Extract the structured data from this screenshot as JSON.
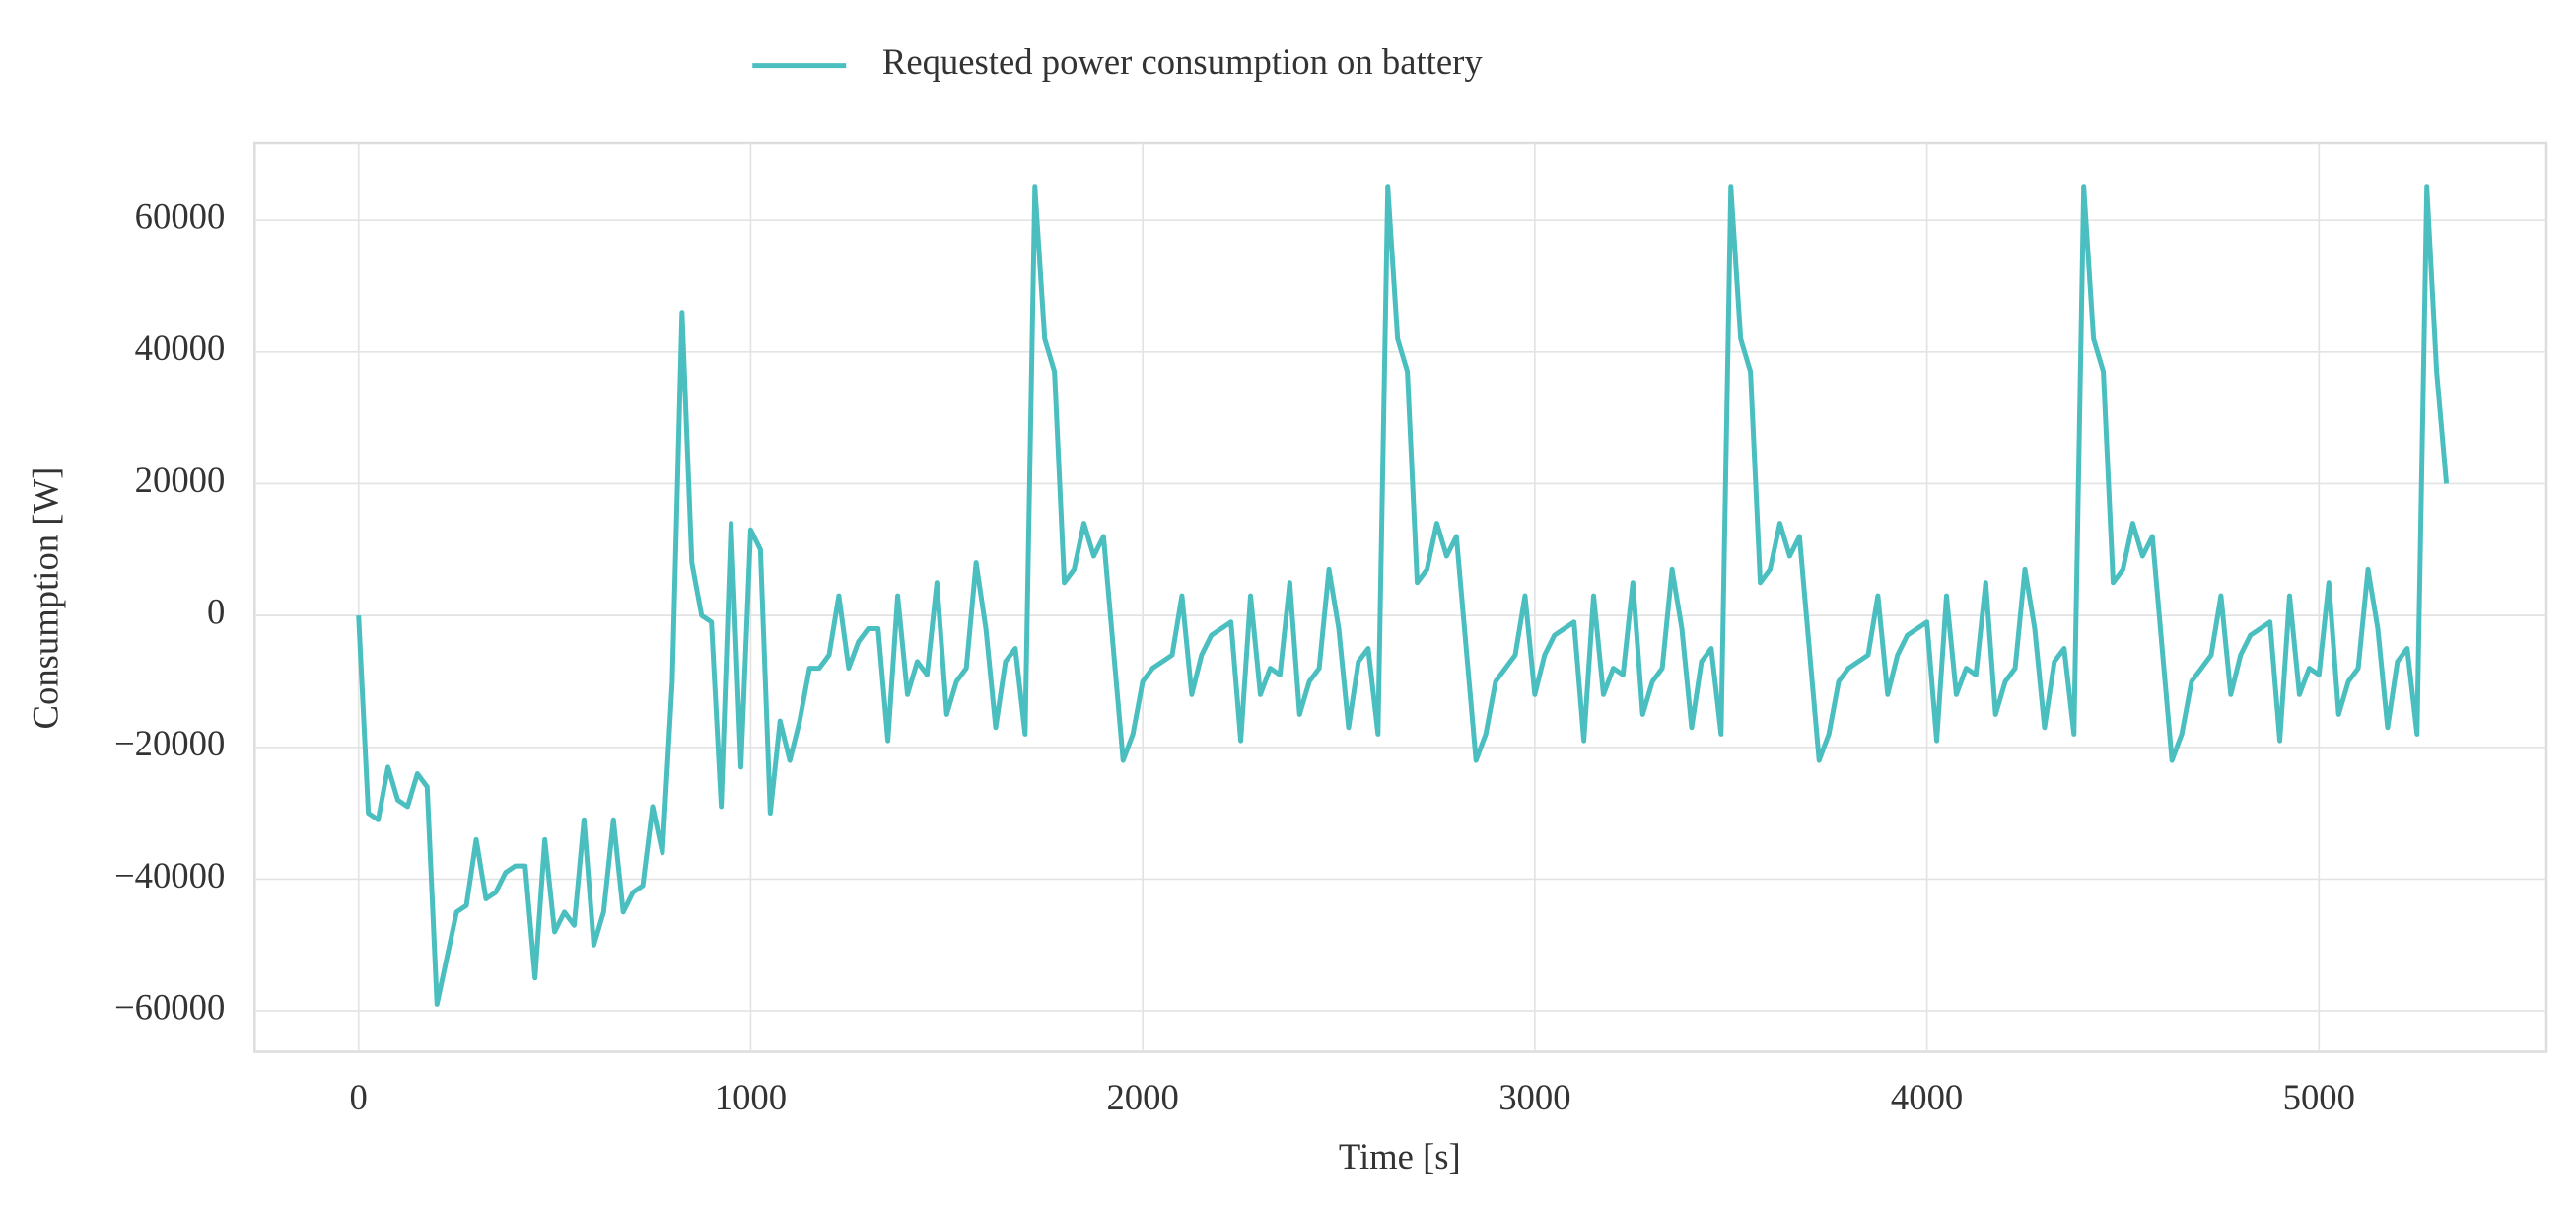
{
  "chart_data": {
    "type": "line",
    "xlabel": "Time [s]",
    "ylabel": "Consumption [W]",
    "xlim": [
      -265,
      5580
    ],
    "ylim": [
      -66200,
      71700
    ],
    "xticks": [
      0,
      1000,
      2000,
      3000,
      4000,
      5000
    ],
    "yticks": [
      {
        "value": -60000,
        "label": "−60000"
      },
      {
        "value": -40000,
        "label": "−40000"
      },
      {
        "value": -20000,
        "label": "−20000"
      },
      0,
      20000,
      40000,
      60000
    ],
    "grid": true,
    "legend": "top",
    "x": [
      0,
      25,
      50,
      75,
      100,
      125,
      150,
      175,
      200,
      225,
      250,
      275,
      300,
      325,
      350,
      375,
      400,
      425,
      450,
      475,
      500,
      525,
      550,
      575,
      600,
      625,
      650,
      675,
      700,
      725,
      750,
      775,
      800,
      825,
      850,
      875,
      900,
      925,
      950,
      975,
      1000,
      1025,
      1050,
      1075,
      1100,
      1125,
      1150,
      1175,
      1200,
      1225,
      1250,
      1275,
      1300,
      1325,
      1350,
      1375,
      1400,
      1425,
      1450,
      1475,
      1500,
      1525,
      1550,
      1575,
      1600,
      1625,
      1650,
      1675,
      1700,
      1725,
      1750,
      1775,
      1800,
      1825,
      1850,
      1875,
      1900,
      1925,
      1950,
      1975,
      2000,
      2025,
      2050,
      2075,
      2100,
      2125,
      2150,
      2175,
      2200,
      2225,
      2250,
      2275,
      2300,
      2325,
      2350,
      2375,
      2400,
      2425,
      2450,
      2475,
      2500,
      2525,
      2550,
      2575,
      2600,
      2625,
      2650,
      2675,
      2700,
      2725,
      2750,
      2775,
      2800,
      2825,
      2850,
      2875,
      2900,
      2925,
      2950,
      2975,
      3000,
      3025,
      3050,
      3075,
      3100,
      3125,
      3150,
      3175,
      3200,
      3225,
      3250,
      3275,
      3300,
      3325,
      3350,
      3375,
      3400,
      3425,
      3450,
      3475,
      3500,
      3525,
      3550,
      3575,
      3600,
      3625,
      3650,
      3675,
      3700,
      3725,
      3750,
      3775,
      3800,
      3825,
      3850,
      3875,
      3900,
      3925,
      3950,
      3975,
      4000,
      4025,
      4050,
      4075,
      4100,
      4125,
      4150,
      4175,
      4200,
      4225,
      4250,
      4275,
      4300,
      4325,
      4350,
      4375,
      4400,
      4425,
      4450,
      4475,
      4500,
      4525,
      4550,
      4575,
      4600,
      4625,
      4650,
      4675,
      4700,
      4725,
      4750,
      4775,
      4800,
      4825,
      4850,
      4875,
      4900,
      4925,
      4950,
      4975,
      5000,
      5025,
      5050,
      5075,
      5100,
      5125,
      5150,
      5175,
      5200,
      5225,
      5250,
      5275,
      5300,
      5325
    ],
    "series": [
      {
        "name": "Requested power consumption on battery",
        "color": "#4bbfc0",
        "values": [
          0,
          -30000,
          -31000,
          -23000,
          -28000,
          -29000,
          -24000,
          -26000,
          -59000,
          -52000,
          -45000,
          -44000,
          -34000,
          -43000,
          -42000,
          -39000,
          -38000,
          -38000,
          -55000,
          -34000,
          -48000,
          -45000,
          -47000,
          -31000,
          -50000,
          -45000,
          -31000,
          -45000,
          -42000,
          -41000,
          -29000,
          -36000,
          -10000,
          46000,
          8000,
          0,
          -1000,
          -29000,
          14000,
          -23000,
          13000,
          10000,
          -30000,
          -16000,
          -22000,
          -16000,
          -8000,
          -8000,
          -6000,
          3000,
          -8000,
          -4000,
          -2000,
          -2000,
          -19000,
          3000,
          -12000,
          -7000,
          -9000,
          5000,
          -15000,
          -10000,
          -8000,
          8000,
          -2000,
          -17000,
          -7000,
          -5000,
          -18000,
          65000,
          42000,
          37000,
          5000,
          7000,
          14000,
          9000,
          12000,
          -5000,
          -22000,
          -18000,
          -10000,
          -8000,
          -7000,
          -6000,
          3000,
          -12000,
          -6000,
          -3000,
          -2000,
          -1000,
          -19000,
          3000,
          -12000,
          -8000,
          -9000,
          5000,
          -15000,
          -10000,
          -8000,
          7000,
          -2000,
          -17000,
          -7000,
          -5000,
          -18000,
          65000,
          42000,
          37000,
          5000,
          7000,
          14000,
          9000,
          12000,
          -5000,
          -22000,
          -18000,
          -10000,
          -8000,
          -6000,
          3000,
          -12000,
          -6000,
          -3000,
          -2000,
          -1000,
          -19000,
          3000,
          -12000,
          -8000,
          -9000,
          5000,
          -15000,
          -10000,
          -8000,
          7000,
          -2000,
          -17000,
          -7000,
          -5000,
          -18000,
          65000,
          42000,
          37000,
          5000,
          7000,
          14000,
          9000,
          12000,
          -5000,
          -22000,
          -18000,
          -10000,
          -8000,
          -7000,
          -6000,
          3000,
          -12000,
          -6000,
          -3000,
          -2000,
          -1000,
          -19000,
          3000,
          -12000,
          -8000,
          -9000,
          5000,
          -15000,
          -10000,
          -8000,
          7000,
          -2000,
          -17000,
          -7000,
          -5000,
          -18000,
          65000,
          42000,
          37000,
          5000,
          7000,
          14000,
          9000,
          12000,
          -5000,
          -22000,
          -18000,
          -10000,
          -8000,
          -6000,
          3000,
          -12000,
          -6000,
          -3000,
          -2000,
          -1000,
          -19000,
          3000,
          -12000,
          -8000,
          -9000,
          5000,
          -15000,
          -10000,
          -8000,
          7000,
          -2000,
          -17000,
          -7000,
          -5000,
          -18000,
          65000,
          37000,
          20000
        ]
      }
    ]
  }
}
